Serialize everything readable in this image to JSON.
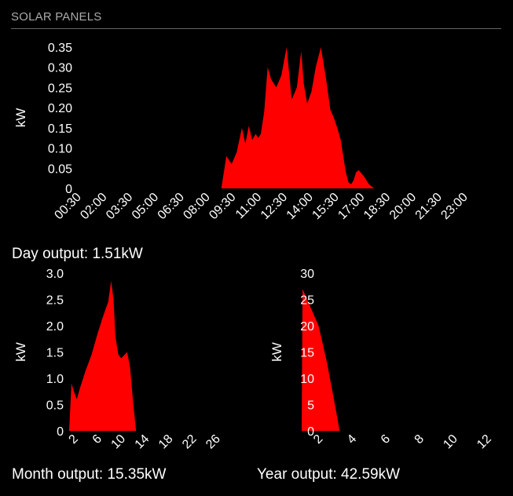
{
  "header": {
    "title": "SOLAR PANELS"
  },
  "colors": {
    "fill": "#ff0000",
    "background": "#000000",
    "text": "#ffffff",
    "header_text": "#aaaaaa",
    "header_rule": "#666666"
  },
  "outputs": {
    "day": "Day output: 1.51kW",
    "month": "Month output: 15.35kW",
    "year": "Year output: 42.59kW"
  },
  "chart_data": [
    {
      "id": "day",
      "type": "area",
      "title": "",
      "xlabel": "",
      "ylabel": "kW",
      "ylim": [
        0,
        0.35
      ],
      "yticks": [
        0,
        0.05,
        0.1,
        0.15,
        0.2,
        0.25,
        0.3,
        0.35
      ],
      "ytick_labels": [
        "0",
        "0.05",
        "0.10",
        "0.15",
        "0.20",
        "0.25",
        "0.30",
        "0.35"
      ],
      "xlim": [
        0.5,
        23.0
      ],
      "xticks": [
        0.5,
        2.0,
        3.5,
        5.0,
        6.5,
        8.0,
        9.5,
        11.0,
        12.5,
        14.0,
        15.5,
        17.0,
        18.5,
        20.0,
        21.5,
        23.0
      ],
      "xtick_labels": [
        "00:30",
        "02:00",
        "03:30",
        "05:00",
        "06:30",
        "08:00",
        "09:30",
        "11:00",
        "12:30",
        "14:00",
        "15:30",
        "17:00",
        "18:30",
        "20:00",
        "21:30",
        "23:00"
      ],
      "grid": false,
      "x": [
        8.9,
        9.2,
        9.5,
        9.8,
        10.1,
        10.3,
        10.5,
        10.7,
        10.9,
        11.05,
        11.2,
        11.4,
        11.6,
        11.8,
        12.1,
        12.4,
        12.7,
        13.0,
        13.3,
        13.55,
        13.7,
        13.9,
        14.15,
        14.4,
        14.7,
        15.0,
        15.25,
        15.45,
        15.65,
        15.85,
        16.0,
        16.15,
        16.3,
        16.45,
        16.6,
        16.75,
        16.9,
        17.2,
        17.5,
        17.8
      ],
      "series": [
        {
          "values": [
            0.0,
            0.08,
            0.06,
            0.09,
            0.15,
            0.11,
            0.155,
            0.12,
            0.135,
            0.125,
            0.135,
            0.19,
            0.3,
            0.27,
            0.25,
            0.28,
            0.35,
            0.22,
            0.25,
            0.34,
            0.26,
            0.21,
            0.24,
            0.3,
            0.35,
            0.27,
            0.195,
            0.175,
            0.15,
            0.12,
            0.08,
            0.04,
            0.015,
            0.01,
            0.02,
            0.04,
            0.045,
            0.03,
            0.01,
            0.0
          ]
        }
      ]
    },
    {
      "id": "month",
      "type": "area",
      "title": "",
      "xlabel": "",
      "ylabel": "kW",
      "ylim": [
        0,
        3.0
      ],
      "yticks": [
        0,
        0.5,
        1.0,
        1.5,
        2.0,
        2.5,
        3.0
      ],
      "ytick_labels": [
        "0",
        "0.5",
        "1.0",
        "1.5",
        "2.0",
        "2.5",
        "3.0"
      ],
      "xlim": [
        2,
        26
      ],
      "xticks": [
        2,
        6,
        10,
        14,
        18,
        22,
        26
      ],
      "xtick_labels": [
        "2",
        "6",
        "10",
        "14",
        "18",
        "22",
        "26"
      ],
      "grid": false,
      "x": [
        1.2,
        1.6,
        2.0,
        2.5,
        3.0,
        4.0,
        5.0,
        6.0,
        7.0,
        7.8,
        8.3,
        8.7,
        9.0,
        9.5,
        10.0,
        10.6,
        11.0,
        11.5,
        12.0,
        12.5
      ],
      "series": [
        {
          "values": [
            0.0,
            0.9,
            0.75,
            0.6,
            0.8,
            1.15,
            1.45,
            1.85,
            2.2,
            2.45,
            2.85,
            2.5,
            1.8,
            1.45,
            1.38,
            1.45,
            1.5,
            1.2,
            0.55,
            0.0
          ]
        }
      ]
    },
    {
      "id": "year",
      "type": "area",
      "title": "",
      "xlabel": "",
      "ylabel": "kW",
      "ylim": [
        0,
        30
      ],
      "yticks": [
        0,
        5,
        10,
        15,
        20,
        25,
        30
      ],
      "ytick_labels": [
        "0",
        "5",
        "10",
        "15",
        "20",
        "25",
        "30"
      ],
      "xlim": [
        1,
        12
      ],
      "xticks": [
        2,
        4,
        6,
        8,
        10,
        12
      ],
      "xtick_labels": [
        "2",
        "4",
        "6",
        "8",
        "10",
        "12"
      ],
      "grid": false,
      "x": [
        1.0,
        1.05,
        2.0,
        2.5,
        3.0,
        3.25
      ],
      "series": [
        {
          "values": [
            0.0,
            27.0,
            20.0,
            13.0,
            4.5,
            0.0
          ]
        }
      ]
    }
  ]
}
